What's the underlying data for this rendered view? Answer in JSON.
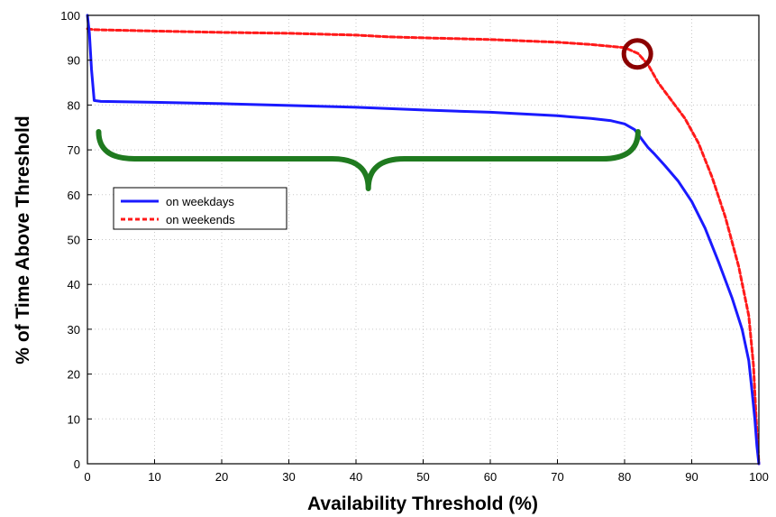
{
  "chart_data": {
    "type": "line",
    "title": "",
    "xlabel": "Availability Threshold (%)",
    "ylabel": "% of Time Above Threshold",
    "xlim": [
      0,
      100
    ],
    "ylim": [
      0,
      100
    ],
    "xticks": [
      0,
      10,
      20,
      30,
      40,
      50,
      60,
      70,
      80,
      90,
      100
    ],
    "yticks": [
      0,
      10,
      20,
      30,
      40,
      50,
      60,
      70,
      80,
      90,
      100
    ],
    "grid": true,
    "legend": {
      "position": "middle-left"
    },
    "series": [
      {
        "name": "on weekdays",
        "color": "#1a1aff",
        "style": "solid",
        "x": [
          0,
          0.3,
          0.6,
          1,
          2,
          10,
          20,
          30,
          40,
          50,
          60,
          70,
          75,
          78,
          80,
          81.5,
          82.5,
          83.5,
          84.5,
          86,
          88,
          90,
          92,
          94,
          96,
          97.5,
          98.5,
          99,
          99.4,
          99.7,
          100
        ],
        "y": [
          100,
          96,
          88,
          81,
          80.8,
          80.6,
          80.3,
          79.9,
          79.5,
          78.9,
          78.4,
          77.6,
          77,
          76.5,
          75.8,
          74.5,
          72.5,
          70.5,
          69,
          66.5,
          63,
          58.5,
          52.5,
          45,
          37,
          30,
          23,
          16,
          10,
          4,
          0
        ]
      },
      {
        "name": "on weekends",
        "color": "#ff1a1a",
        "style": "dashed",
        "x": [
          0,
          1,
          10,
          20,
          30,
          40,
          45,
          50,
          60,
          70,
          75,
          80,
          82,
          83.5,
          85,
          87,
          89,
          91,
          93,
          95,
          97,
          98.5,
          99.2,
          99.6,
          100
        ],
        "y": [
          97,
          96.8,
          96.5,
          96.2,
          96,
          95.6,
          95.2,
          95,
          94.6,
          94,
          93.5,
          92.8,
          91.5,
          89,
          85,
          81,
          77,
          71.5,
          64,
          55,
          44,
          33,
          22,
          10,
          0
        ]
      }
    ],
    "annotations": [
      {
        "type": "circle",
        "x": 81.5,
        "y": 92,
        "color": "#8b0000"
      },
      {
        "type": "curly-brace",
        "x_start": 1,
        "x_end": 82,
        "y": 68,
        "color": "#1f7a1f"
      }
    ]
  }
}
